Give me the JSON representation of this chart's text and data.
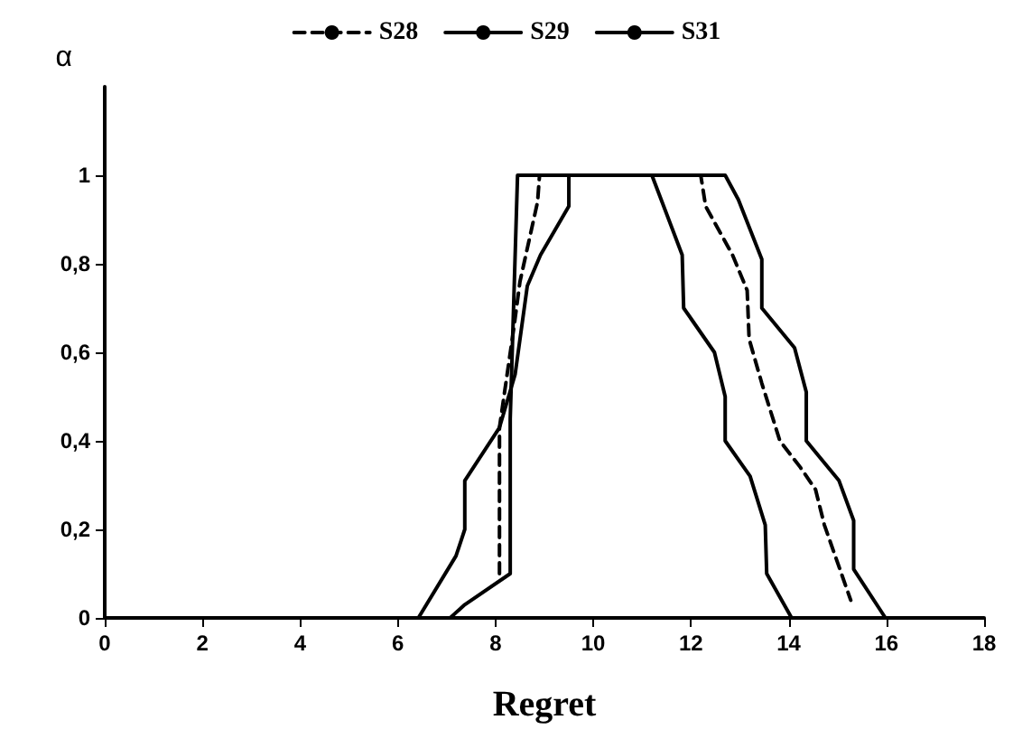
{
  "chart_data": {
    "type": "line",
    "xlabel": "Regret",
    "ylabel": "α",
    "xlim": [
      0,
      18
    ],
    "ylim": [
      0,
      1.2
    ],
    "xticks": [
      0,
      2,
      4,
      6,
      8,
      10,
      12,
      14,
      16,
      18
    ],
    "yticks": [
      0,
      {
        "value": 0.2,
        "label": "0,2"
      },
      {
        "value": 0.4,
        "label": "0,4"
      },
      {
        "value": 0.6,
        "label": "0,6"
      },
      {
        "value": 0.8,
        "label": "0,8"
      },
      1
    ],
    "grid": false,
    "legend": "top",
    "marker": "none",
    "series": [
      {
        "name": "S28",
        "color": "#000000",
        "line_style": "dashed",
        "x": [
          8.08,
          8.08,
          8.38,
          8.5,
          8.86,
          8.9,
          12.2,
          12.3,
          12.85,
          13.15,
          13.19,
          13.45,
          13.82,
          14.24,
          14.55,
          14.73,
          15.27
        ],
        "values": [
          0.1,
          0.43,
          0.66,
          0.76,
          0.94,
          1,
          1,
          0.93,
          0.82,
          0.74,
          0.63,
          0.53,
          0.4,
          0.34,
          0.29,
          0.21,
          0.04
        ]
      },
      {
        "name": "S29",
        "color": "#000000",
        "line_style": "solid",
        "x": [
          6.42,
          7.19,
          7.37,
          7.37,
          8.08,
          8.4,
          8.65,
          8.92,
          9.5,
          9.5,
          11.2,
          11.39,
          11.82,
          11.85,
          12.48,
          12.7,
          12.7,
          13.21,
          13.52,
          13.55,
          14.06
        ],
        "values": [
          0,
          0.14,
          0.2,
          0.31,
          0.43,
          0.55,
          0.75,
          0.82,
          0.93,
          1,
          1,
          0.945,
          0.82,
          0.7,
          0.6,
          0.5,
          0.4,
          0.32,
          0.21,
          0.1,
          0
        ]
      },
      {
        "name": "S31",
        "color": "#000000",
        "line_style": "solid",
        "x": [
          7.07,
          7.37,
          8.3,
          8.3,
          8.45,
          12.7,
          12.97,
          13.45,
          13.45,
          14.12,
          14.36,
          14.36,
          15.03,
          15.33,
          15.33,
          15.98
        ],
        "values": [
          0,
          0.03,
          0.1,
          0.45,
          1,
          1,
          0.945,
          0.81,
          0.7,
          0.61,
          0.51,
          0.4,
          0.31,
          0.22,
          0.11,
          0
        ]
      }
    ]
  }
}
